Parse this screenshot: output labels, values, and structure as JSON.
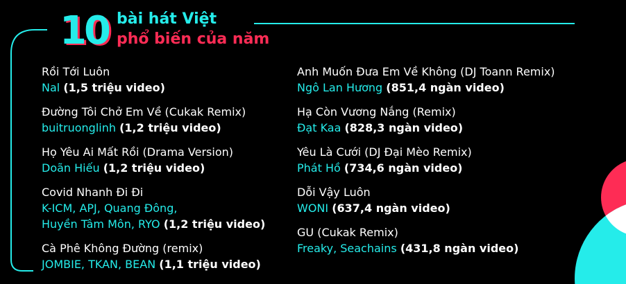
{
  "header": {
    "number": "10",
    "line1": "bài hát Việt",
    "line2": "phổ biến của năm"
  },
  "colors": {
    "accent_cyan": "#25ecea",
    "accent_red": "#fe2c55",
    "background": "#000000"
  },
  "left_songs": [
    {
      "title": "Rồi Tới Luôn",
      "artist": "Nal",
      "count": "(1,5 triệu video)"
    },
    {
      "title": "Đường Tôi Chở Em Về (Cukak Remix)",
      "artist": "buitruonglinh",
      "count": "(1,2 triệu video)"
    },
    {
      "title": "Họ Yêu Ai Mất Rồi (Drama Version)",
      "artist": "Doãn Hiếu",
      "count": "(1,2 triệu video)"
    },
    {
      "title": "Covid Nhanh Đi Đi",
      "artist_line1": "K-ICM, APJ, Quang Đông,",
      "artist": "Huyền Tâm Môn, RYO",
      "count": "(1,2 triệu video)"
    },
    {
      "title": "Cà Phê Không Đường (remix)",
      "artist": "JOMBIE, TKAN, BEAN",
      "count": "(1,1 triệu video)"
    }
  ],
  "right_songs": [
    {
      "title": "Anh Muốn Đưa Em Về Không (DJ Toann Remix)",
      "artist": "Ngô Lan Hương",
      "count": "(851,4 ngàn video)"
    },
    {
      "title": "Hạ Còn Vương Nắng (Remix)",
      "artist": "Đạt Kaa",
      "count": "(828,3 ngàn video)"
    },
    {
      "title": "Yêu Là Cưới (DJ Đại Mèo Remix)",
      "artist": "Phát Hồ",
      "count": "(734,6 ngàn video)"
    },
    {
      "title": "Dỗi Vậy Luôn",
      "artist": "WONI",
      "count": "(637,4 ngàn video)"
    },
    {
      "title": "GU (Cukak Remix)",
      "artist": "Freaky, Seachains",
      "count": "(431,8 ngàn video)"
    }
  ]
}
